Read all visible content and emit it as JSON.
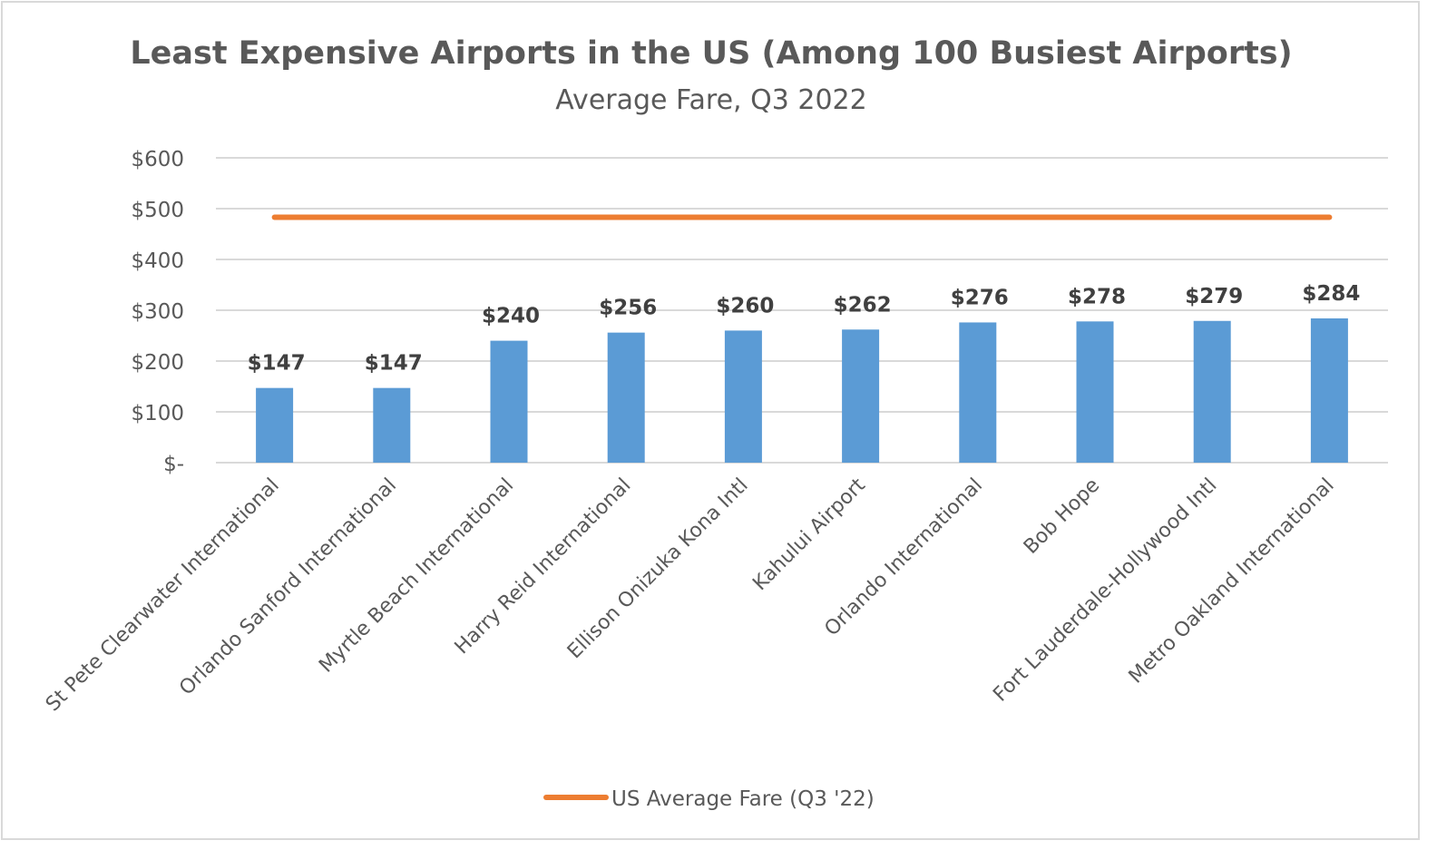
{
  "chart_data": {
    "type": "bar",
    "title": "Least Expensive Airports in the US (Among 100 Busiest Airports)",
    "subtitle": "Average Fare, Q3 2022",
    "xlabel": "",
    "ylabel": "",
    "categories": [
      "St Pete Clearwater International",
      "Orlando Sanford International",
      "Myrtle Beach International",
      "Harry Reid International",
      "Ellison Onizuka Kona Intl",
      "Kahului Airport",
      "Orlando International",
      "Bob Hope",
      "Fort Lauderdale-Hollywood Intl",
      "Metro Oakland International"
    ],
    "values": [
      147,
      147,
      240,
      256,
      260,
      262,
      276,
      278,
      279,
      284
    ],
    "data_labels": [
      "$147",
      "$147",
      "$240",
      "$256",
      "$260",
      "$262",
      "$276",
      "$278",
      "$279",
      "$284"
    ],
    "reference_line": {
      "name": "US Average Fare (Q3 '22)",
      "value": 483,
      "color": "#ED7D31"
    },
    "bar_color": "#5B9BD5",
    "ylim": [
      0,
      600
    ],
    "yticks": [
      0,
      100,
      200,
      300,
      400,
      500,
      600
    ],
    "ytick_labels": [
      "$-",
      "$100",
      "$200",
      "$300",
      "$400",
      "$500",
      "$600"
    ],
    "grid": true,
    "legend": {
      "position": "bottom",
      "entries": [
        "US Average Fare (Q3 '22)"
      ]
    }
  }
}
